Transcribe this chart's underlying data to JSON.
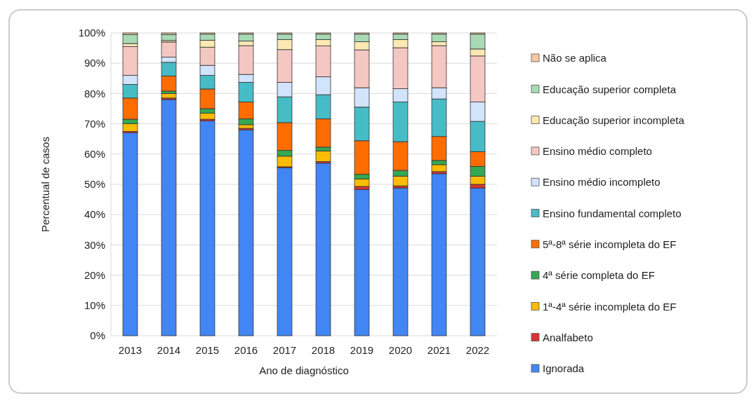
{
  "chart_data": {
    "type": "bar",
    "stacked": true,
    "xlabel": "Ano de diagnóstico",
    "ylabel": "Percentual de casos",
    "categories": [
      "2013",
      "2014",
      "2015",
      "2016",
      "2017",
      "2018",
      "2019",
      "2020",
      "2021",
      "2022"
    ],
    "ylim": [
      0,
      100
    ],
    "yticks": [
      {
        "value": 0,
        "label": "0%"
      },
      {
        "value": 10,
        "label": "10%"
      },
      {
        "value": 20,
        "label": "20%"
      },
      {
        "value": 30,
        "label": "30%"
      },
      {
        "value": 40,
        "label": "40%"
      },
      {
        "value": 50,
        "label": "50%"
      },
      {
        "value": 60,
        "label": "60%"
      },
      {
        "value": 70,
        "label": "70%"
      },
      {
        "value": 80,
        "label": "80%"
      },
      {
        "value": 90,
        "label": "90%"
      },
      {
        "value": 100,
        "label": "100%"
      }
    ],
    "grid": "y",
    "legend": "right",
    "series": [
      {
        "name": "Ignorada",
        "color": "#4285f4",
        "values": [
          67,
          78,
          71,
          68,
          55.5,
          57,
          48.3,
          48.8,
          53.5,
          48.8
        ]
      },
      {
        "name": "Analfabeto",
        "color": "#db3236",
        "values": [
          0.5,
          0.5,
          0.5,
          0.5,
          0.3,
          0.5,
          1,
          0.7,
          0.7,
          1.2
        ]
      },
      {
        "name": "1ª-4ª série incompleta do EF",
        "color": "#fbbc05",
        "values": [
          2.5,
          1.5,
          2,
          1.2,
          3.5,
          3.5,
          2.5,
          3.2,
          2.3,
          2.7
        ]
      },
      {
        "name": "4ª série completa do EF",
        "color": "#34a853",
        "values": [
          1.5,
          0.8,
          1.5,
          1.9,
          1.9,
          1.3,
          1.5,
          1.9,
          1.4,
          3.2
        ]
      },
      {
        "name": "5ª-8ª série incompleta do EF",
        "color": "#ff6d01",
        "values": [
          7,
          5,
          6.5,
          5.6,
          9.2,
          9.3,
          11.1,
          9.5,
          7.9,
          4.9
        ]
      },
      {
        "name": "Ensino fundamental completo",
        "color": "#46bdc6",
        "values": [
          4.5,
          4.5,
          4.5,
          6.5,
          8.5,
          8,
          11.1,
          13.1,
          12.4,
          10
        ]
      },
      {
        "name": "Ensino médio incompleto",
        "color": "#d2e3fc",
        "values": [
          3,
          1.7,
          3.3,
          2.6,
          4.8,
          5.9,
          6.4,
          4.4,
          3.7,
          6.4
        ]
      },
      {
        "name": "Ensino médio completo",
        "color": "#f4c7c3",
        "values": [
          9.5,
          5,
          6,
          9.5,
          10.8,
          10.2,
          12.5,
          13.5,
          13.9,
          15.2
        ]
      },
      {
        "name": "Educação superior incompleta",
        "color": "#fce8b2",
        "values": [
          1,
          0.5,
          2.3,
          1.5,
          3.3,
          2.1,
          2.7,
          2.7,
          1.3,
          2.3
        ]
      },
      {
        "name": "Educação superior completa",
        "color": "#a8dab5",
        "values": [
          3,
          2,
          2,
          2.3,
          1.8,
          1.8,
          2.5,
          1.8,
          2.5,
          4.9
        ]
      },
      {
        "name": "Não se aplica",
        "color": "#f8c9a0",
        "values": [
          0.5,
          0.5,
          0.4,
          0.4,
          0.4,
          0.4,
          0.4,
          0.4,
          0.4,
          0.4
        ]
      }
    ]
  }
}
